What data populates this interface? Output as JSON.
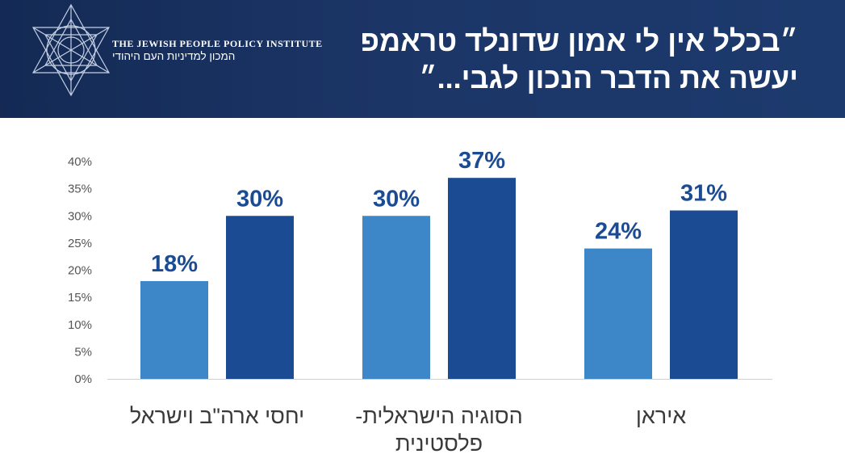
{
  "header": {
    "logo_en": "THE JEWISH PEOPLE POLICY INSTITUTE",
    "logo_he": "המכון למדיניות העם היהודי",
    "title_line1": "״בכלל אין לי אמון שדונלד טראמפ",
    "title_line2": "יעשה את הדבר הנכון לגבי...״",
    "background_color": "#1b3566"
  },
  "chart_data": {
    "type": "bar",
    "categories": [
      "יחסי ארה\"ב וישראל",
      "הסוגיה הישראלית-פלסטינית",
      "איראן"
    ],
    "category_lines": [
      [
        "יחסי ארה\"ב וישראל"
      ],
      [
        "הסוגיה הישראלית-",
        "פלסטינית"
      ],
      [
        "איראן"
      ]
    ],
    "series": [
      {
        "values": [
          18,
          30,
          24
        ],
        "color": "#3d86c8"
      },
      {
        "values": [
          30,
          37,
          31
        ],
        "color": "#1b4c93"
      }
    ],
    "data_labels": [
      [
        "18%",
        "30%",
        "24%"
      ],
      [
        "30%",
        "37%",
        "31%"
      ]
    ],
    "ylim": [
      0,
      40
    ],
    "yticks": [
      "0%",
      "5%",
      "10%",
      "15%",
      "20%",
      "25%",
      "30%",
      "35%",
      "40%"
    ],
    "grid": false,
    "legend": "none"
  }
}
